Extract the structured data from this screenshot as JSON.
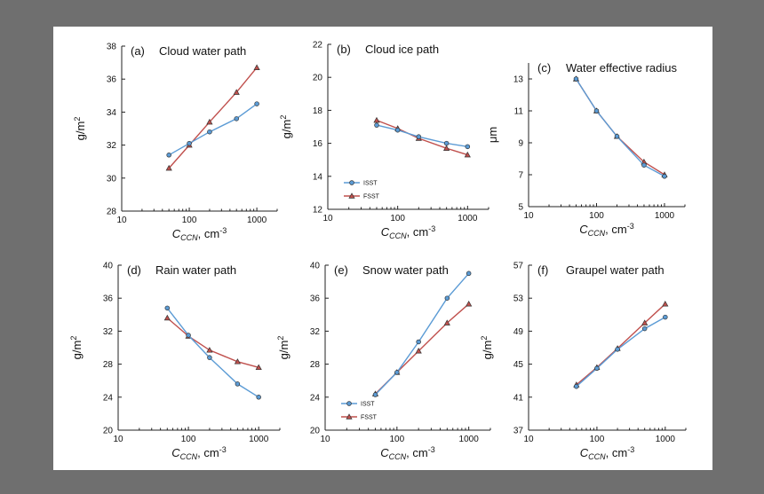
{
  "colors": {
    "background": "#6f6f6f",
    "panel": "#ffffff",
    "issT": "#5b9bd5",
    "fssT": "#c0504d",
    "marker_stroke": "#333333"
  },
  "shared": {
    "xlabel_main": "C",
    "xlabel_sub": "CCN",
    "xlabel_suffix": ", cm",
    "xlabel_sup": "-3",
    "legend": [
      "ISST",
      "FSST"
    ]
  },
  "chart_data": [
    {
      "type": "line",
      "panel_label": "(a)",
      "title": "Cloud water path",
      "ylabel": "g/m",
      "ylabel_sup": "2",
      "xscale": "log",
      "xlim": [
        10,
        2000
      ],
      "xticks": [
        10,
        100,
        1000
      ],
      "xtick_labels": [
        "10",
        "100",
        "1000"
      ],
      "ylim": [
        28,
        38
      ],
      "yticks": [
        28,
        30,
        32,
        34,
        36,
        38
      ],
      "ytick_labels": [
        "28",
        "30",
        "32",
        "34",
        "36",
        "38"
      ],
      "series": [
        {
          "name": "ISST",
          "marker": "circle",
          "x": [
            50,
            100,
            200,
            500,
            1000
          ],
          "values": [
            31.4,
            32.1,
            32.8,
            33.6,
            34.5
          ]
        },
        {
          "name": "FSST",
          "marker": "triangle",
          "x": [
            50,
            100,
            200,
            500,
            1000
          ],
          "values": [
            30.6,
            32.0,
            33.4,
            35.2,
            36.7
          ]
        }
      ],
      "legend_shown": false
    },
    {
      "type": "line",
      "panel_label": "(b)",
      "title": "Cloud ice path",
      "ylabel": "g/m",
      "ylabel_sup": "2",
      "xscale": "log",
      "xlim": [
        10,
        2000
      ],
      "xticks": [
        10,
        100,
        1000
      ],
      "xtick_labels": [
        "10",
        "100",
        "1000"
      ],
      "ylim": [
        12,
        22
      ],
      "yticks": [
        12,
        14,
        16,
        18,
        20,
        22
      ],
      "ytick_labels": [
        "12",
        "14",
        "16",
        "18",
        "20",
        "22"
      ],
      "series": [
        {
          "name": "ISST",
          "marker": "circle",
          "x": [
            50,
            100,
            200,
            500,
            1000
          ],
          "values": [
            17.1,
            16.8,
            16.4,
            16.0,
            15.8
          ]
        },
        {
          "name": "FSST",
          "marker": "triangle",
          "x": [
            50,
            100,
            200,
            500,
            1000
          ],
          "values": [
            17.4,
            16.9,
            16.3,
            15.7,
            15.3
          ]
        }
      ],
      "legend_shown": true,
      "legend_position": "lower-left"
    },
    {
      "type": "line",
      "panel_label": "(c)",
      "title": "Water effective radius",
      "ylabel": "μm",
      "ylabel_sup": "",
      "xscale": "log",
      "xlim": [
        10,
        2000
      ],
      "xticks": [
        10,
        100,
        1000
      ],
      "xtick_labels": [
        "10",
        "100",
        "1000"
      ],
      "ylim": [
        5,
        14
      ],
      "yticks": [
        5,
        7,
        9,
        11,
        13
      ],
      "ytick_labels": [
        "5",
        "7",
        "9",
        "11",
        "13"
      ],
      "series": [
        {
          "name": "ISST",
          "marker": "circle",
          "x": [
            50,
            100,
            200,
            500,
            1000
          ],
          "values": [
            13.0,
            11.0,
            9.4,
            7.6,
            6.9
          ]
        },
        {
          "name": "FSST",
          "marker": "triangle",
          "x": [
            50,
            100,
            200,
            500,
            1000
          ],
          "values": [
            13.0,
            11.0,
            9.4,
            7.8,
            7.0
          ]
        }
      ],
      "legend_shown": false
    },
    {
      "type": "line",
      "panel_label": "(d)",
      "title": "Rain water path",
      "ylabel": "g/m",
      "ylabel_sup": "2",
      "xscale": "log",
      "xlim": [
        10,
        2000
      ],
      "xticks": [
        10,
        100,
        1000
      ],
      "xtick_labels": [
        "10",
        "100",
        "1000"
      ],
      "ylim": [
        20,
        40
      ],
      "yticks": [
        20,
        24,
        28,
        32,
        36,
        40
      ],
      "ytick_labels": [
        "20",
        "24",
        "28",
        "32",
        "36",
        "40"
      ],
      "series": [
        {
          "name": "ISST",
          "marker": "circle",
          "x": [
            50,
            100,
            200,
            500,
            1000
          ],
          "values": [
            34.8,
            31.5,
            28.8,
            25.6,
            24.0
          ]
        },
        {
          "name": "FSST",
          "marker": "triangle",
          "x": [
            50,
            100,
            200,
            500,
            1000
          ],
          "values": [
            33.6,
            31.4,
            29.7,
            28.3,
            27.6
          ]
        }
      ],
      "legend_shown": false
    },
    {
      "type": "line",
      "panel_label": "(e)",
      "title": "Snow water path",
      "ylabel": "g/m",
      "ylabel_sup": "2",
      "xscale": "log",
      "xlim": [
        10,
        2000
      ],
      "xticks": [
        10,
        100,
        1000
      ],
      "xtick_labels": [
        "10",
        "100",
        "1000"
      ],
      "ylim": [
        20,
        40
      ],
      "yticks": [
        20,
        24,
        28,
        32,
        36,
        40
      ],
      "ytick_labels": [
        "20",
        "24",
        "28",
        "32",
        "36",
        "40"
      ],
      "series": [
        {
          "name": "ISST",
          "marker": "circle",
          "x": [
            50,
            100,
            200,
            500,
            1000
          ],
          "values": [
            24.3,
            27.0,
            30.7,
            36.0,
            39.0
          ]
        },
        {
          "name": "FSST",
          "marker": "triangle",
          "x": [
            50,
            100,
            200,
            500,
            1000
          ],
          "values": [
            24.4,
            27.0,
            29.6,
            33.0,
            35.3
          ]
        }
      ],
      "legend_shown": true,
      "legend_position": "lower-left"
    },
    {
      "type": "line",
      "panel_label": "(f)",
      "title": "Graupel water path",
      "ylabel": "g/m",
      "ylabel_sup": "2",
      "xscale": "log",
      "xlim": [
        10,
        2000
      ],
      "xticks": [
        10,
        100,
        1000
      ],
      "xtick_labels": [
        "10",
        "100",
        "1000"
      ],
      "ylim": [
        37,
        57
      ],
      "yticks": [
        37,
        41,
        45,
        49,
        53,
        57
      ],
      "ytick_labels": [
        "37",
        "41",
        "45",
        "49",
        "53",
        "57"
      ],
      "series": [
        {
          "name": "ISST",
          "marker": "circle",
          "x": [
            50,
            100,
            200,
            500,
            1000
          ],
          "values": [
            42.3,
            44.5,
            46.8,
            49.3,
            50.7
          ]
        },
        {
          "name": "FSST",
          "marker": "triangle",
          "x": [
            50,
            100,
            200,
            500,
            1000
          ],
          "values": [
            42.5,
            44.6,
            46.9,
            50.0,
            52.3
          ]
        }
      ],
      "legend_shown": false
    }
  ]
}
